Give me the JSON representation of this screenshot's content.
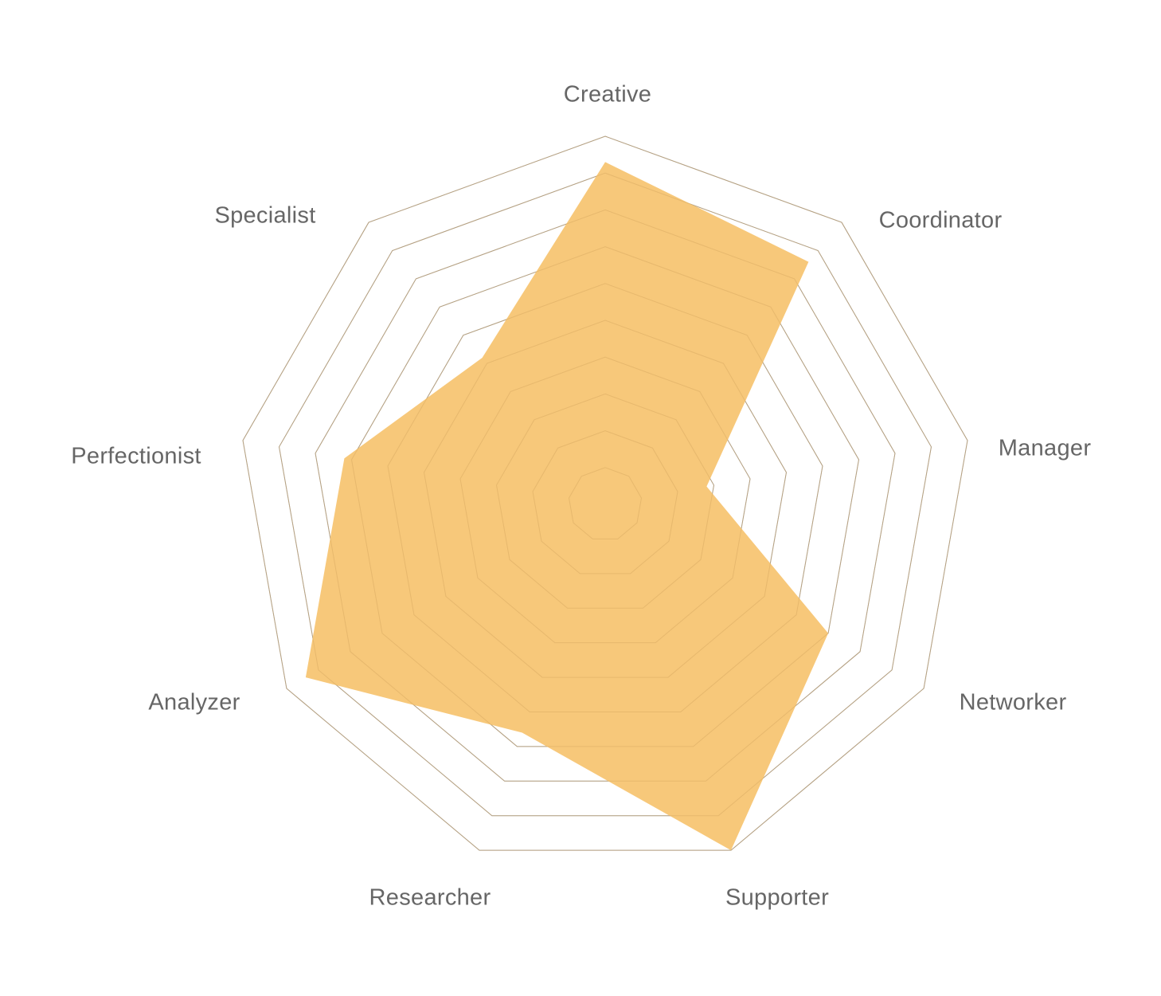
{
  "chart_data": {
    "type": "radar",
    "categories": [
      "Creative",
      "Coordinator",
      "Manager",
      "Networker",
      "Supporter",
      "Researcher",
      "Analyzer",
      "Perfectionist",
      "Specialist"
    ],
    "series": [
      {
        "values": [
          9.3,
          8.6,
          2.8,
          7.0,
          10.0,
          6.6,
          9.4,
          7.2,
          5.2
        ]
      }
    ],
    "range": [
      0,
      10
    ],
    "rings": 10,
    "grid": true
  },
  "colors": {
    "fill": "#f7c87a",
    "grid": "#9e9e9e",
    "grid_inner": "#d3a45e",
    "label": "#666666",
    "background": "#ffffff"
  }
}
